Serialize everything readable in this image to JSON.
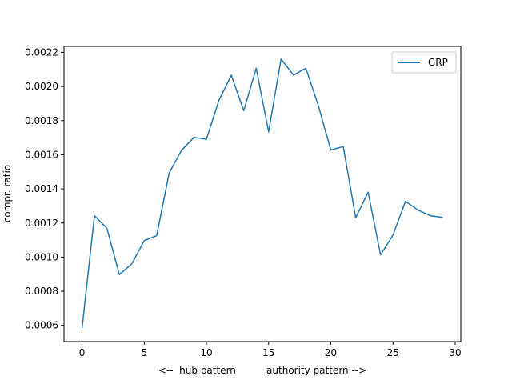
{
  "chart_data": {
    "type": "line",
    "title": "",
    "xlabel": "<--  hub pattern          authority pattern -->",
    "ylabel": "compr. ratio",
    "xlim": [
      -1.45,
      30.45
    ],
    "ylim": [
      0.000505,
      0.002235
    ],
    "xticks": [
      0,
      5,
      10,
      15,
      20,
      25,
      30
    ],
    "xtick_labels": [
      "0",
      "5",
      "10",
      "15",
      "20",
      "25",
      "30"
    ],
    "yticks": [
      0.0006,
      0.0008,
      0.001,
      0.0012,
      0.0014,
      0.0016,
      0.0018,
      0.002,
      0.0022
    ],
    "ytick_labels": [
      "0.0006",
      "0.0008",
      "0.0010",
      "0.0012",
      "0.0014",
      "0.0016",
      "0.0018",
      "0.0020",
      "0.0022"
    ],
    "grid": false,
    "legend_position": "top-right",
    "series": [
      {
        "name": "GRP",
        "color": "#1f77b4",
        "x": [
          0,
          1,
          2,
          3,
          4,
          5,
          6,
          7,
          8,
          9,
          10,
          11,
          12,
          13,
          14,
          15,
          16,
          17,
          18,
          19,
          20,
          21,
          22,
          23,
          24,
          25,
          26,
          27,
          28,
          29
        ],
        "y": [
          0.000583,
          0.001243,
          0.001169,
          0.000898,
          0.00096,
          0.001097,
          0.001126,
          0.001492,
          0.001627,
          0.001702,
          0.001691,
          0.001918,
          0.002066,
          0.001858,
          0.002107,
          0.001734,
          0.002161,
          0.002067,
          0.002107,
          0.001887,
          0.001628,
          0.001648,
          0.001231,
          0.001381,
          0.001013,
          0.001129,
          0.001327,
          0.001276,
          0.001243,
          0.001233
        ]
      }
    ]
  }
}
